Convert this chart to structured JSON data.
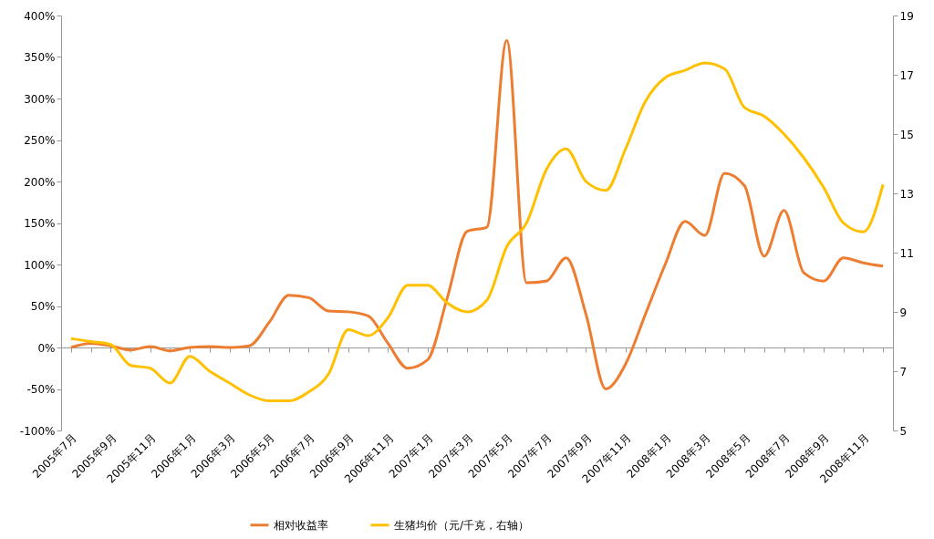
{
  "chart_data": {
    "type": "line",
    "categories": [
      "2005年7月",
      null,
      "2005年9月",
      null,
      "2005年11月",
      null,
      "2006年1月",
      null,
      "2006年3月",
      null,
      "2006年5月",
      null,
      "2006年7月",
      null,
      "2006年9月",
      null,
      "2006年11月",
      null,
      "2007年1月",
      null,
      "2007年3月",
      null,
      "2007年5月",
      null,
      "2007年7月",
      null,
      "2007年9月",
      null,
      "2007年11月",
      null,
      "2008年1月",
      null,
      "2008年3月",
      null,
      "2008年5月",
      null,
      "2008年7月",
      null,
      "2008年9月",
      null,
      "2008年11月",
      null
    ],
    "series": [
      {
        "name": "相对收益率",
        "color": "#ed7d31",
        "values": [
          0,
          5,
          2,
          -3,
          1,
          -4,
          0,
          1,
          0,
          2,
          30,
          63,
          60,
          44,
          43,
          38,
          5,
          -25,
          -15,
          60,
          140,
          145,
          370,
          78,
          80,
          108,
          40,
          -50,
          -20,
          40,
          100,
          152,
          135,
          210,
          195,
          110,
          165,
          90,
          80,
          108,
          102,
          98
        ]
      },
      {
        "name": "生猪均价（元/千克，右轴）",
        "color": "#ffc000",
        "axis": "y2",
        "values": [
          8.1,
          8.0,
          7.9,
          7.2,
          7.1,
          6.6,
          7.5,
          7.0,
          6.6,
          6.2,
          6.0,
          6.0,
          6.3,
          6.9,
          8.4,
          8.2,
          8.8,
          9.9,
          9.9,
          9.3,
          9.0,
          9.4,
          11.2,
          12.0,
          13.8,
          14.5,
          13.4,
          13.1,
          14.5,
          16.1,
          16.9,
          17.15,
          17.4,
          17.2,
          15.9,
          15.6,
          15.0,
          14.2,
          13.2,
          12.0,
          11.7,
          13.3
        ]
      }
    ],
    "ylim": [
      -100,
      400
    ],
    "yticks": [
      {
        "value": -100,
        "label": "-100%"
      },
      {
        "value": -50,
        "label": "-50%"
      },
      {
        "value": 0,
        "label": "0%"
      },
      {
        "value": 50,
        "label": "50%"
      },
      {
        "value": 100,
        "label": "100%"
      },
      {
        "value": 150,
        "label": "150%"
      },
      {
        "value": 200,
        "label": "200%"
      },
      {
        "value": 250,
        "label": "250%"
      },
      {
        "value": 300,
        "label": "300%"
      },
      {
        "value": 350,
        "label": "350%"
      },
      {
        "value": 400,
        "label": "400%"
      }
    ],
    "y2lim": [
      5,
      19
    ],
    "y2ticks": [
      5,
      7,
      9,
      11,
      13,
      15,
      17,
      19
    ],
    "legend": "bottom",
    "line_style": "solid",
    "marker": "none"
  }
}
